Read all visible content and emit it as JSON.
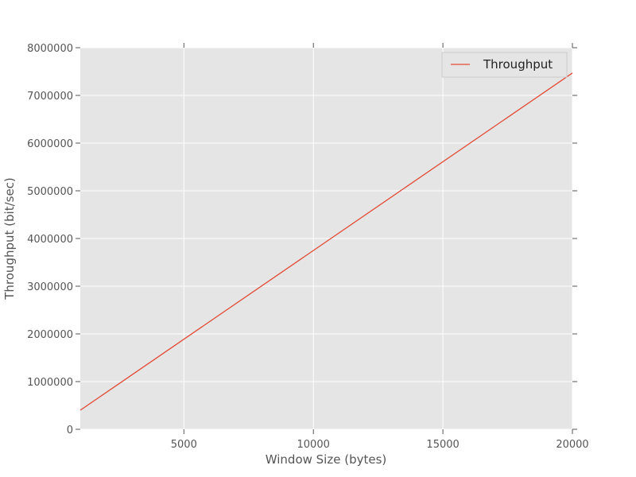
{
  "chart_data": {
    "type": "line",
    "title": "",
    "xlabel": "Window Size (bytes)",
    "ylabel": "Throughput (bit/sec)",
    "xlim": [
      1000,
      20000
    ],
    "ylim": [
      0,
      8000000
    ],
    "x_ticks": [
      5000,
      10000,
      15000,
      20000
    ],
    "y_ticks": [
      0,
      1000000,
      2000000,
      3000000,
      4000000,
      5000000,
      6000000,
      7000000,
      8000000
    ],
    "x_tick_labels": [
      "5000",
      "10000",
      "15000",
      "20000"
    ],
    "y_tick_labels": [
      "0",
      "1000000",
      "2000000",
      "3000000",
      "4000000",
      "5000000",
      "6000000",
      "7000000",
      "8000000"
    ],
    "grid": true,
    "legend_position": "top-right",
    "series": [
      {
        "name": "Throughput",
        "color": "#e24a33",
        "x": [
          1000,
          20000
        ],
        "y": [
          400000,
          7470000
        ]
      }
    ],
    "colors": {
      "plot_background": "#e5e5e5",
      "grid": "#ffffff",
      "text": "#555555"
    }
  }
}
